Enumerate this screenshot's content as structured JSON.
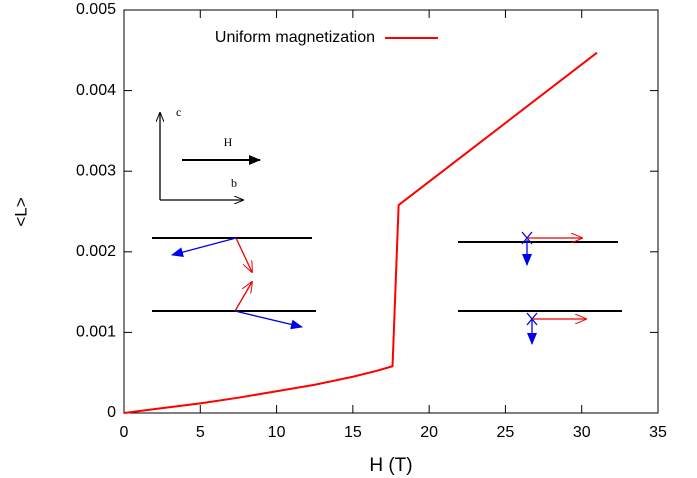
{
  "chart_data": {
    "type": "line",
    "xlabel": "H (T)",
    "ylabel": "<L>",
    "xlim": [
      0,
      35
    ],
    "ylim": [
      0,
      0.005
    ],
    "xticks": [
      0,
      5,
      10,
      15,
      20,
      25,
      30,
      35
    ],
    "yticks": [
      0,
      0.001,
      0.002,
      0.003,
      0.004,
      0.005
    ],
    "legend": "top",
    "series": [
      {
        "name": "Uniform magnetization",
        "color": "#ff0000",
        "x": [
          0,
          2.5,
          5,
          7.5,
          10,
          12.5,
          15,
          16.5,
          17.6,
          18,
          31
        ],
        "values": [
          0,
          6e-05,
          0.00012,
          0.00019,
          0.00027,
          0.00035,
          0.00045,
          0.00052,
          0.00058,
          0.00258,
          0.00447
        ]
      }
    ],
    "annotations": [
      "c",
      "H",
      "b"
    ]
  }
}
